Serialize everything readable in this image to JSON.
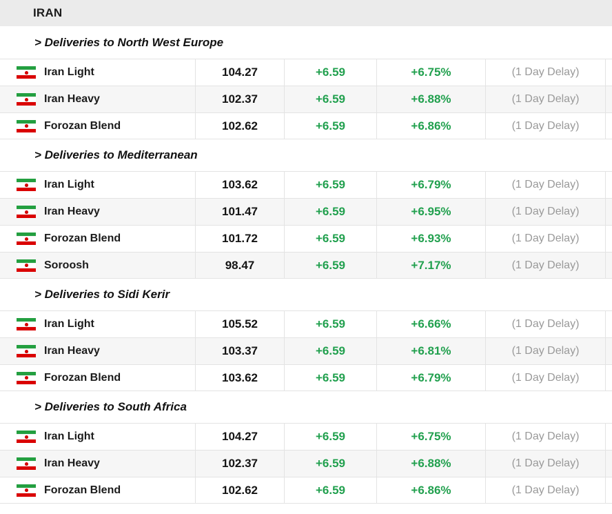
{
  "header": {
    "title": "IRAN"
  },
  "colors": {
    "positive": "#21a04e",
    "delay_text": "#999999",
    "header_bg": "#ebebeb",
    "row_alt_bg": "#f6f6f6",
    "border": "#e3e3e3",
    "flag_green": "#239f40",
    "flag_red": "#da0000"
  },
  "icons": {
    "flag": "iran-flag-icon"
  },
  "sections": [
    {
      "title": "> Deliveries to North West Europe",
      "rows": [
        {
          "name": "Iran Light",
          "price": "104.27",
          "change": "+6.59",
          "percent": "+6.75%",
          "delay": "(1 Day Delay)"
        },
        {
          "name": "Iran Heavy",
          "price": "102.37",
          "change": "+6.59",
          "percent": "+6.88%",
          "delay": "(1 Day Delay)"
        },
        {
          "name": "Forozan Blend",
          "price": "102.62",
          "change": "+6.59",
          "percent": "+6.86%",
          "delay": "(1 Day Delay)"
        }
      ]
    },
    {
      "title": "> Deliveries to Mediterranean",
      "rows": [
        {
          "name": "Iran Light",
          "price": "103.62",
          "change": "+6.59",
          "percent": "+6.79%",
          "delay": "(1 Day Delay)"
        },
        {
          "name": "Iran Heavy",
          "price": "101.47",
          "change": "+6.59",
          "percent": "+6.95%",
          "delay": "(1 Day Delay)"
        },
        {
          "name": "Forozan Blend",
          "price": "101.72",
          "change": "+6.59",
          "percent": "+6.93%",
          "delay": "(1 Day Delay)"
        },
        {
          "name": "Soroosh",
          "price": "98.47",
          "change": "+6.59",
          "percent": "+7.17%",
          "delay": "(1 Day Delay)"
        }
      ]
    },
    {
      "title": "> Deliveries to Sidi Kerir",
      "rows": [
        {
          "name": "Iran Light",
          "price": "105.52",
          "change": "+6.59",
          "percent": "+6.66%",
          "delay": "(1 Day Delay)"
        },
        {
          "name": "Iran Heavy",
          "price": "103.37",
          "change": "+6.59",
          "percent": "+6.81%",
          "delay": "(1 Day Delay)"
        },
        {
          "name": "Forozan Blend",
          "price": "103.62",
          "change": "+6.59",
          "percent": "+6.79%",
          "delay": "(1 Day Delay)"
        }
      ]
    },
    {
      "title": "> Deliveries to South Africa",
      "rows": [
        {
          "name": "Iran Light",
          "price": "104.27",
          "change": "+6.59",
          "percent": "+6.75%",
          "delay": "(1 Day Delay)"
        },
        {
          "name": "Iran Heavy",
          "price": "102.37",
          "change": "+6.59",
          "percent": "+6.88%",
          "delay": "(1 Day Delay)"
        },
        {
          "name": "Forozan Blend",
          "price": "102.62",
          "change": "+6.59",
          "percent": "+6.86%",
          "delay": "(1 Day Delay)"
        }
      ]
    }
  ]
}
